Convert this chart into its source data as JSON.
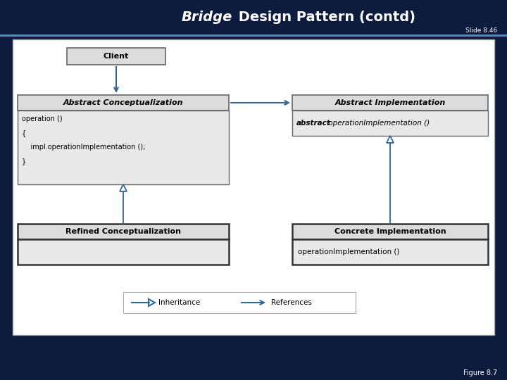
{
  "title_italic": "Bridge",
  "title_rest": " Design Pattern (contd)",
  "slide_num": "Slide 8.46",
  "figure_label": "Figure 8.7",
  "bg_color": "#0d1b3e",
  "line_color": "#4a90b8",
  "box_bg_light": "#dcdcdc",
  "box_bg_body": "#e8e8e8",
  "box_border_thin": "#666666",
  "box_border_thick": "#333333",
  "arrow_color": "#336699",
  "diagram_bg": "#ffffff",
  "client_label": "Client",
  "abstract_concept_label": "Abstract Conceptualization",
  "abstract_impl_label": "Abstract Implementation",
  "refined_concept_label": "Refined Conceptualization",
  "concrete_impl_label": "Concrete Implementation",
  "code_lines": [
    "operation ()",
    "{",
    "    impl.operationImplementation ();",
    "}"
  ],
  "abstract_bold": "abstract",
  "abstract_rest": " operationImplementation ()",
  "concrete_method": "operationImplementation ()",
  "legend_inheritance": "Inheritance",
  "legend_references": "References"
}
